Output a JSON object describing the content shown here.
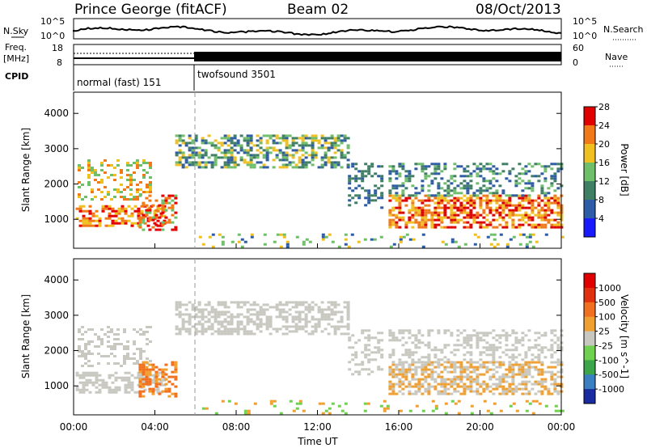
{
  "header": {
    "station": "Prince George (fitACF)",
    "beam": "Beam 02",
    "date": "08/Oct/2013"
  },
  "noise_panel": {
    "left_label": "N.Sky",
    "right_label": "N.Search",
    "tick_top": "10^5",
    "tick_bottom": "10^0"
  },
  "freq_panel": {
    "left_label_1": "Freq.",
    "left_label_2": "[MHz]",
    "left_tick_top": "18",
    "left_tick_bottom": "8",
    "right_label": "Nave",
    "right_tick_top": "60",
    "right_tick_bottom": "0"
  },
  "cpid_panel": {
    "label": "CPID",
    "mode_1": "normal (fast) 151",
    "mode_2": "twofsound 3501"
  },
  "chart_data": [
    {
      "type": "heatmap",
      "title": "",
      "quantity": "Power",
      "colorbar_label": "Power [dB]",
      "ylabel": "Slant Range [km]",
      "xlabel": "",
      "x_ticks": [
        "00:00",
        "04:00",
        "08:00",
        "12:00",
        "16:00",
        "20:00",
        "00:00"
      ],
      "y_ticks": [
        1000,
        2000,
        3000,
        4000
      ],
      "ylim": [
        180,
        4600
      ],
      "colorbar_ticks": [
        "4",
        "8",
        "12",
        "16",
        "20",
        "24",
        "28"
      ],
      "colors": [
        "#1a1aff",
        "#2e5ca6",
        "#3f7f64",
        "#6fbf6a",
        "#f0c020",
        "#f07a1a",
        "#e00000"
      ],
      "mode_change_time": "06:00"
    },
    {
      "type": "heatmap",
      "title": "",
      "quantity": "Velocity",
      "colorbar_label": "Velocity [m s^-1]",
      "ylabel": "Slant Range [km]",
      "xlabel": "Time UT",
      "x_ticks": [
        "00:00",
        "04:00",
        "08:00",
        "12:00",
        "16:00",
        "20:00",
        "00:00"
      ],
      "y_ticks": [
        1000,
        2000,
        3000,
        4000
      ],
      "ylim": [
        180,
        4600
      ],
      "colorbar_ticks": [
        "1000",
        "500",
        "100",
        "25",
        "-25",
        "-100",
        "-500",
        "-1000"
      ],
      "colors": [
        "#1a2aa0",
        "#3a7fc0",
        "#3ea64a",
        "#70d050",
        "#c8c8c0",
        "#f0a030",
        "#f07020",
        "#e03010",
        "#e00000"
      ],
      "mode_change_time": "06:00"
    }
  ]
}
